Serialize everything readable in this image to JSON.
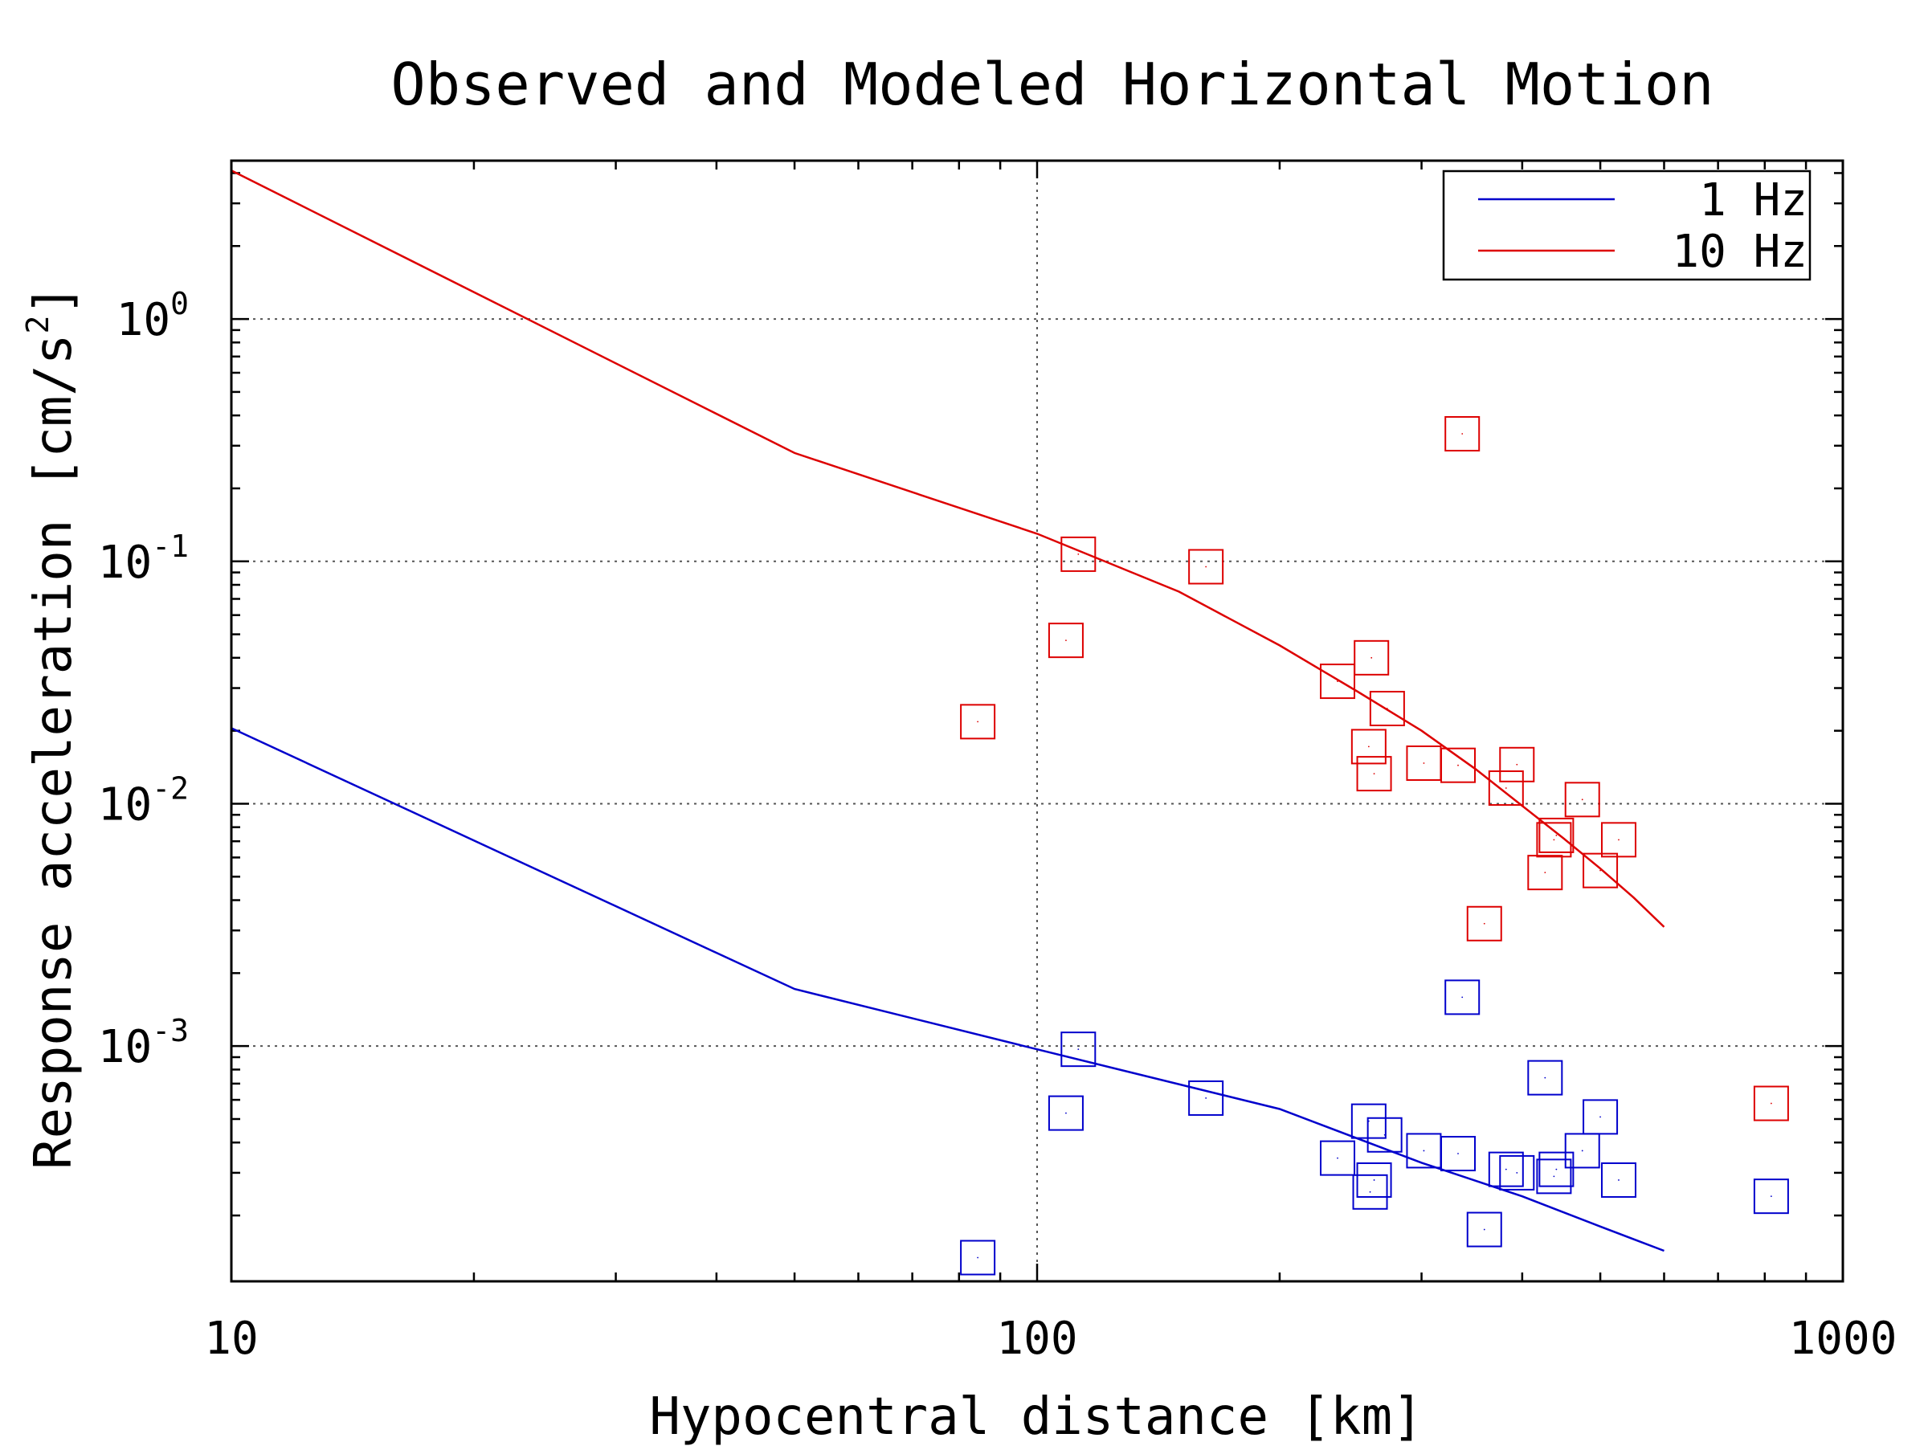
{
  "chart_data": {
    "type": "scatter",
    "title": "Observed and Modeled Horizontal Motion",
    "xlabel": "Hypocentral distance [km]",
    "ylabel": "Response acceleration [cm/s",
    "ylabel_superscript": "2",
    "ylabel_suffix": "]",
    "x_scale": "log",
    "y_scale": "log",
    "xlim": [
      10,
      1000
    ],
    "ylim": [
      0.000107,
      4.5
    ],
    "x_ticks": [
      10,
      100,
      1000
    ],
    "x_tick_labels": [
      "10",
      "100",
      "1000"
    ],
    "y_ticks": [
      1,
      0.1,
      0.01,
      0.001
    ],
    "y_tick_labels": [
      {
        "base": "10",
        "exp": "0"
      },
      {
        "base": "10",
        "exp": "-1"
      },
      {
        "base": "10",
        "exp": "-2"
      },
      {
        "base": "10",
        "exp": "-3"
      }
    ],
    "grid": true,
    "legend_position": "top-right",
    "legend": [
      {
        "label": "1 Hz",
        "color": "#0000cc"
      },
      {
        "label": "10 Hz",
        "color": "#dd0000"
      }
    ],
    "series": [
      {
        "name": "1 Hz",
        "color": "#0000cc",
        "model_x": [
          10,
          50,
          100,
          200,
          300,
          400,
          500,
          600
        ],
        "model_y": [
          0.0205,
          0.00172,
          0.00097,
          0.00055,
          0.00033,
          0.00024,
          0.00018,
          0.000143
        ],
        "observed": [
          {
            "x": 84.4,
            "y": 0.000134
          },
          {
            "x": 108.6,
            "y": 0.000529
          },
          {
            "x": 112.5,
            "y": 0.00097
          },
          {
            "x": 162,
            "y": 0.00061
          },
          {
            "x": 236,
            "y": 0.000345
          },
          {
            "x": 258,
            "y": 0.00049
          },
          {
            "x": 259,
            "y": 0.00025
          },
          {
            "x": 262,
            "y": 0.00028
          },
          {
            "x": 270,
            "y": 0.00043
          },
          {
            "x": 302,
            "y": 0.00037
          },
          {
            "x": 333,
            "y": 0.00036
          },
          {
            "x": 337,
            "y": 0.00159
          },
          {
            "x": 359,
            "y": 0.000175
          },
          {
            "x": 382,
            "y": 0.00031
          },
          {
            "x": 394,
            "y": 0.0003
          },
          {
            "x": 427,
            "y": 0.00074
          },
          {
            "x": 438,
            "y": 0.00029
          },
          {
            "x": 441,
            "y": 0.00031
          },
          {
            "x": 475,
            "y": 0.00037
          },
          {
            "x": 500,
            "y": 0.00051
          },
          {
            "x": 527,
            "y": 0.00028
          },
          {
            "x": 815,
            "y": 0.00024
          }
        ]
      },
      {
        "name": "10 Hz",
        "color": "#dd0000",
        "model_x": [
          10,
          50,
          100,
          150,
          200,
          250,
          300,
          350,
          400,
          450,
          500,
          550,
          600
        ],
        "model_y": [
          4.1,
          0.28,
          0.13,
          0.075,
          0.045,
          0.029,
          0.02,
          0.0139,
          0.0098,
          0.0072,
          0.0054,
          0.0041,
          0.0031
        ],
        "observed": [
          {
            "x": 84.4,
            "y": 0.0218
          },
          {
            "x": 108.6,
            "y": 0.0472
          },
          {
            "x": 112.5,
            "y": 0.107
          },
          {
            "x": 162,
            "y": 0.095
          },
          {
            "x": 236,
            "y": 0.032
          },
          {
            "x": 258,
            "y": 0.0172
          },
          {
            "x": 260,
            "y": 0.04
          },
          {
            "x": 262,
            "y": 0.0133
          },
          {
            "x": 272,
            "y": 0.0247
          },
          {
            "x": 302,
            "y": 0.0147
          },
          {
            "x": 333,
            "y": 0.0144
          },
          {
            "x": 337,
            "y": 0.336
          },
          {
            "x": 359,
            "y": 0.0032
          },
          {
            "x": 382,
            "y": 0.0116
          },
          {
            "x": 394,
            "y": 0.0145
          },
          {
            "x": 427,
            "y": 0.0052
          },
          {
            "x": 438,
            "y": 0.0071
          },
          {
            "x": 441,
            "y": 0.0074
          },
          {
            "x": 475,
            "y": 0.0104
          },
          {
            "x": 500,
            "y": 0.0053
          },
          {
            "x": 527,
            "y": 0.0071
          },
          {
            "x": 815,
            "y": 0.00058
          }
        ]
      }
    ]
  }
}
